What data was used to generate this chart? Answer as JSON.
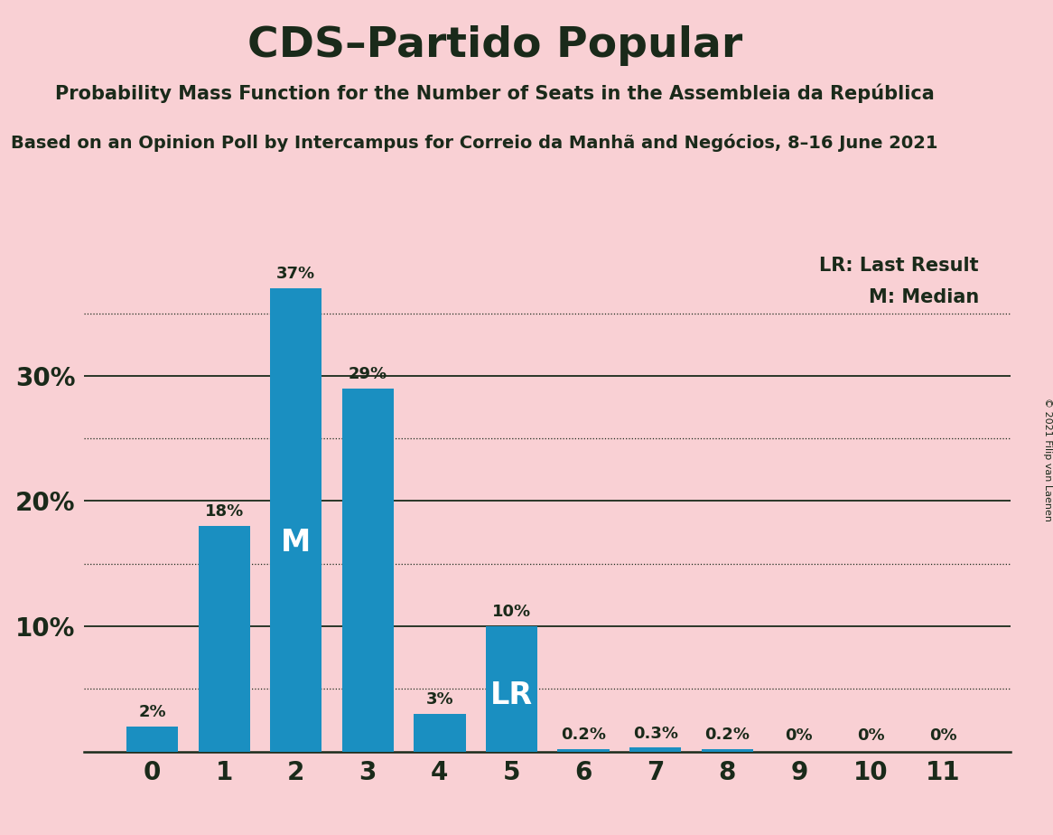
{
  "title": "CDS–Partido Popular",
  "subtitle1": "Probability Mass Function for the Number of Seats in the Assembleia da República",
  "subtitle2": "Based on an Opinion Poll by Intercampus for Correio da Manhã and Negócios, 8–16 June 2021",
  "copyright": "© 2021 Filip van Laenen",
  "categories": [
    0,
    1,
    2,
    3,
    4,
    5,
    6,
    7,
    8,
    9,
    10,
    11
  ],
  "values": [
    2,
    18,
    37,
    29,
    3,
    10,
    0.2,
    0.3,
    0.2,
    0,
    0,
    0
  ],
  "labels": [
    "2%",
    "18%",
    "37%",
    "29%",
    "3%",
    "10%",
    "0.2%",
    "0.3%",
    "0.2%",
    "0%",
    "0%",
    "0%"
  ],
  "bar_color": "#1a8fc1",
  "background_color": "#f9d0d4",
  "text_color": "#1a2a1a",
  "median_bar": 2,
  "lr_bar": 5,
  "legend_lr": "LR: Last Result",
  "legend_m": "M: Median",
  "ylim": [
    0,
    40
  ],
  "dotted_yticks": [
    5,
    15,
    25,
    35
  ],
  "solid_yticks": [
    10,
    20,
    30
  ],
  "ytick_positions": [
    10,
    20,
    30
  ],
  "ytick_labels": [
    "10%",
    "20%",
    "30%"
  ]
}
